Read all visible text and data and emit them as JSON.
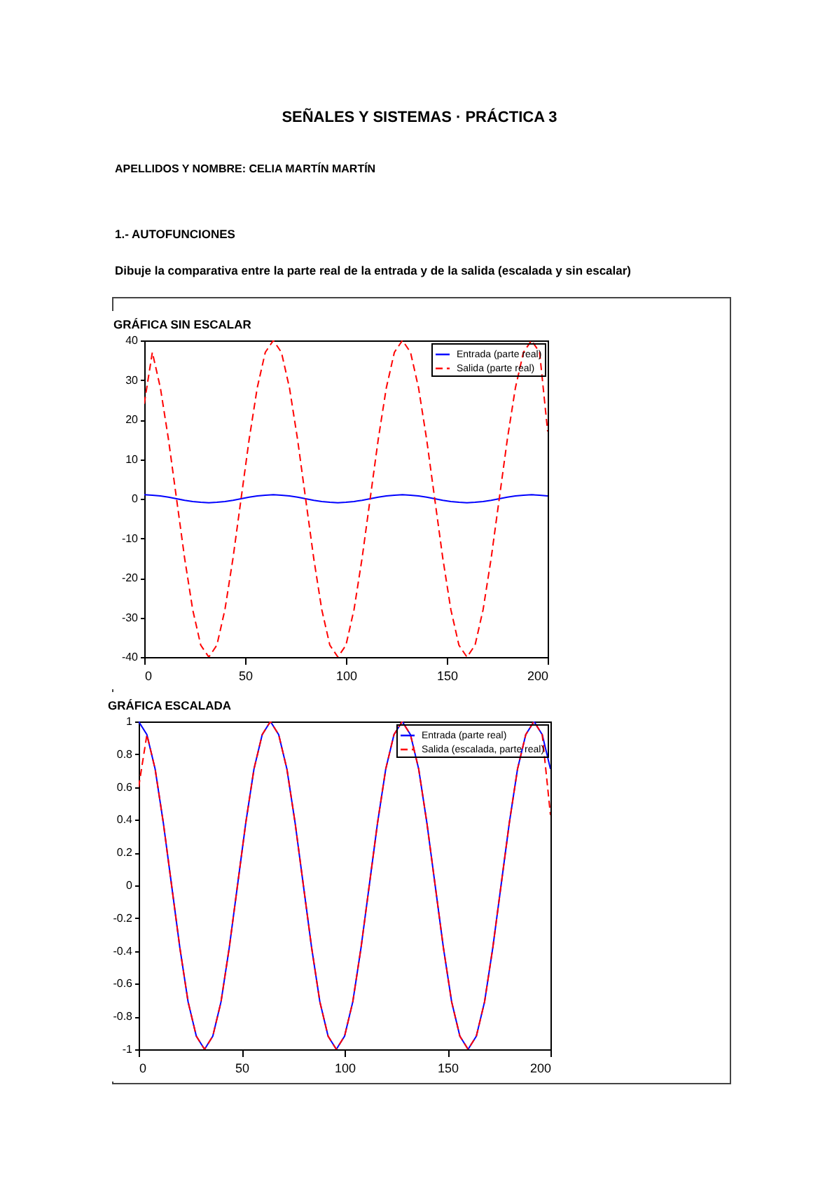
{
  "chart_data": [
    {
      "type": "line",
      "title": "GRÁFICA SIN ESCALAR",
      "annotations": [
        "SEÑALES Y SISTEMAS · PRÁCTICA 3",
        "APELLIDOS Y NOMBRE: CELIA MARTÍN MARTÍN",
        "1.- AUTOFUNCIONES",
        "Dibuje la comparativa entre la parte real de la entrada y de la salida (escalada y sin escalar)"
      ],
      "x": [
        0,
        4,
        8,
        12,
        16,
        20,
        24,
        28,
        32,
        36,
        40,
        44,
        48,
        52,
        56,
        60,
        64,
        68,
        72,
        76,
        80,
        84,
        88,
        92,
        96,
        100,
        104,
        108,
        112,
        116,
        120,
        124,
        128,
        132,
        136,
        140,
        144,
        148,
        152,
        156,
        160,
        164,
        168,
        172,
        176,
        180,
        184,
        188,
        192,
        196,
        200
      ],
      "series": [
        {
          "name": "Entrada (parte real)",
          "color": "#0000ff",
          "line_style": "solid",
          "values": [
            1,
            0.9,
            0.7,
            0.4,
            0,
            -0.4,
            -0.7,
            -0.9,
            -1,
            -0.9,
            -0.7,
            -0.4,
            0,
            0.4,
            0.7,
            0.9,
            1,
            0.9,
            0.7,
            0.4,
            0,
            -0.4,
            -0.7,
            -0.9,
            -1,
            -0.9,
            -0.7,
            -0.4,
            0,
            0.4,
            0.7,
            0.9,
            1,
            0.9,
            0.7,
            0.4,
            0,
            -0.4,
            -0.7,
            -0.9,
            -1,
            -0.9,
            -0.7,
            -0.4,
            0,
            0.4,
            0.7,
            0.9,
            1,
            0.9,
            0.7
          ]
        },
        {
          "name": "Salida (parte real)",
          "color": "#ff0000",
          "line_style": "dashed",
          "values": [
            24,
            37,
            28,
            15,
            0,
            -15,
            -28,
            -37,
            -40,
            -37,
            -28,
            -15,
            0,
            15,
            28,
            37,
            40,
            37,
            28,
            15,
            0,
            -15,
            -28,
            -37,
            -40,
            -37,
            -28,
            -15,
            0,
            15,
            28,
            37,
            40,
            37,
            28,
            15,
            0,
            -15,
            -28,
            -37,
            -40,
            -37,
            -28,
            -15,
            0,
            15,
            28,
            37,
            40,
            37,
            17
          ]
        }
      ],
      "xlim": [
        0,
        200
      ],
      "xticks": [
        0,
        50,
        100,
        150,
        200
      ],
      "ylim": [
        -40,
        40
      ],
      "yticks": [
        -40,
        -30,
        -20,
        -10,
        0,
        10,
        20,
        30,
        40
      ],
      "legend": "top right"
    },
    {
      "type": "line",
      "title": "GRÁFICA ESCALADA",
      "x": [
        0,
        4,
        8,
        12,
        16,
        20,
        24,
        28,
        32,
        36,
        40,
        44,
        48,
        52,
        56,
        60,
        64,
        68,
        72,
        76,
        80,
        84,
        88,
        92,
        96,
        100,
        104,
        108,
        112,
        116,
        120,
        124,
        128,
        132,
        136,
        140,
        144,
        148,
        152,
        156,
        160,
        164,
        168,
        172,
        176,
        180,
        184,
        188,
        192,
        196,
        200
      ],
      "series": [
        {
          "name": "Entrada (parte real)",
          "color": "#0000ff",
          "line_style": "solid",
          "values": [
            1,
            0.92,
            0.71,
            0.38,
            0,
            -0.38,
            -0.71,
            -0.92,
            -1,
            -0.92,
            -0.71,
            -0.38,
            0,
            0.38,
            0.71,
            0.92,
            1,
            0.92,
            0.71,
            0.38,
            0,
            -0.38,
            -0.71,
            -0.92,
            -1,
            -0.92,
            -0.71,
            -0.38,
            0,
            0.38,
            0.71,
            0.92,
            1,
            0.92,
            0.71,
            0.38,
            0,
            -0.38,
            -0.71,
            -0.92,
            -1,
            -0.92,
            -0.71,
            -0.38,
            0,
            0.38,
            0.71,
            0.92,
            1,
            0.92,
            0.71
          ]
        },
        {
          "name": "Salida (escalada, parte real)",
          "color": "#ff0000",
          "line_style": "dashed",
          "values": [
            0.6,
            0.92,
            0.71,
            0.38,
            0,
            -0.38,
            -0.71,
            -0.92,
            -1,
            -0.92,
            -0.71,
            -0.38,
            0,
            0.38,
            0.71,
            0.92,
            1,
            0.92,
            0.71,
            0.38,
            0,
            -0.38,
            -0.71,
            -0.92,
            -1,
            -0.92,
            -0.71,
            -0.38,
            0,
            0.38,
            0.71,
            0.92,
            1,
            0.92,
            0.71,
            0.38,
            0,
            -0.38,
            -0.71,
            -0.92,
            -1,
            -0.92,
            -0.71,
            -0.38,
            0,
            0.38,
            0.71,
            0.92,
            1,
            0.92,
            0.43
          ]
        }
      ],
      "xlim": [
        0,
        200
      ],
      "xticks": [
        0,
        50,
        100,
        150,
        200
      ],
      "ylim": [
        -1,
        1
      ],
      "yticks": [
        -1,
        -0.8,
        -0.6,
        -0.4,
        -0.2,
        0,
        0.2,
        0.4,
        0.6,
        0.8,
        1
      ],
      "legend": "top right"
    }
  ]
}
